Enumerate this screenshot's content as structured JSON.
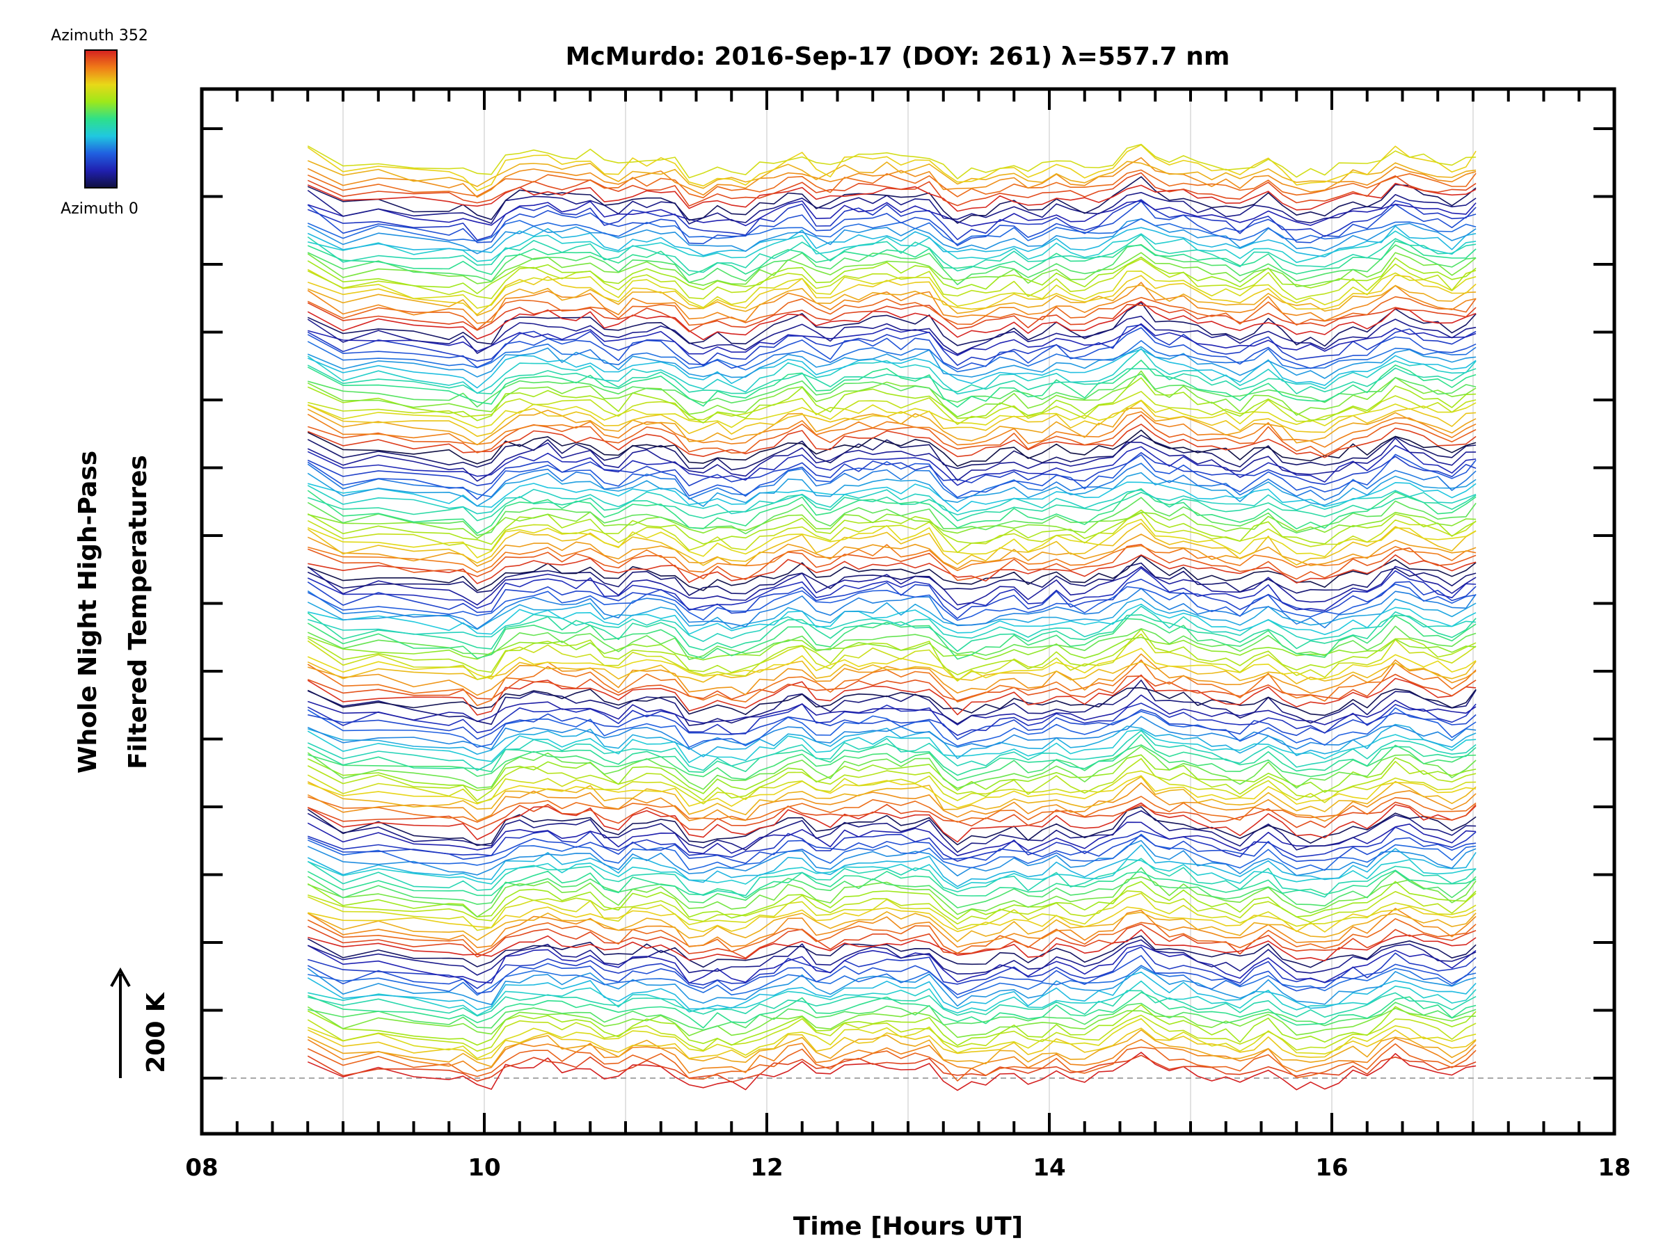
{
  "chart_data": {
    "type": "line",
    "title": "McMurdo: 2016-Sep-17 (DOY: 261) λ=557.7 nm",
    "xlabel": "Time [Hours UT]",
    "ylabel_line1": "Whole Night High-Pass",
    "ylabel_line2": "Filtered Temperatures",
    "scale_bar_label": "200 K",
    "xlim": [
      8,
      18
    ],
    "x_tick_labels": [
      "08",
      "10",
      "12",
      "14",
      "16",
      "18"
    ],
    "x_tick_values": [
      8,
      10,
      12,
      14,
      16,
      18
    ],
    "x_gridlines": [
      9,
      10,
      11,
      12,
      13,
      14,
      15,
      16,
      17
    ],
    "data_time_range": [
      8.75,
      17.02
    ],
    "n_traces": 160,
    "trace_offset_step": 0.1,
    "y_major_ticks": 15,
    "colorbar": {
      "top_label": "Azimuth 352",
      "bottom_label": "Azimuth 0",
      "colormap": "rainbow",
      "stops": [
        "#d42020",
        "#f07a18",
        "#e8d818",
        "#9ee81a",
        "#2ee08a",
        "#20c8e0",
        "#2060e0",
        "#2020b0",
        "#101040"
      ]
    },
    "baseline_style": "dashed gray"
  }
}
